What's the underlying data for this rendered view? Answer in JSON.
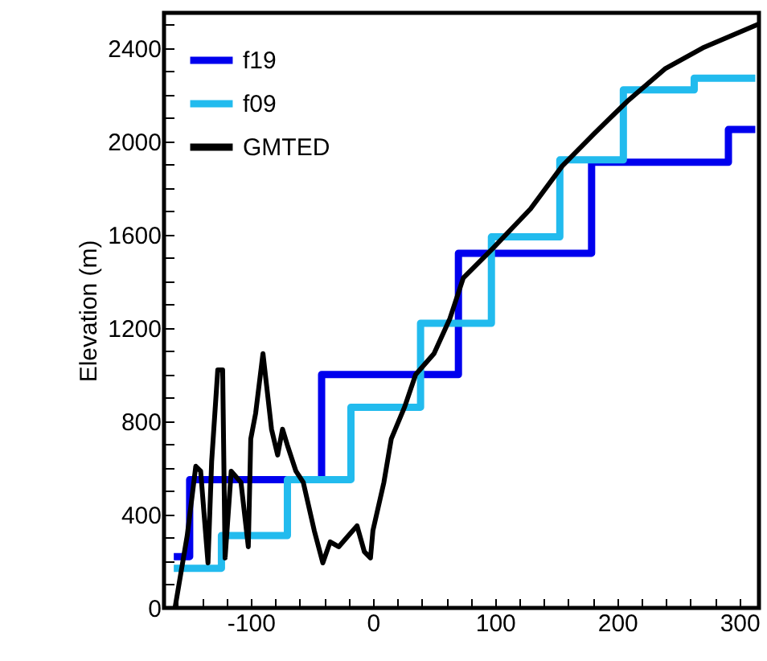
{
  "chart_data": {
    "type": "line",
    "ylabel": "Elevation (m)",
    "xlim": [
      -171,
      316
    ],
    "ylim": [
      0,
      2550
    ],
    "xticks": [
      {
        "value": -160,
        "label": null
      },
      {
        "value": -140,
        "label": null
      },
      {
        "value": -120,
        "label": null
      },
      -100,
      {
        "value": -80,
        "label": null
      },
      {
        "value": -60,
        "label": null
      },
      {
        "value": -40,
        "label": null
      },
      {
        "value": -20,
        "label": null
      },
      0,
      {
        "value": 20,
        "label": null
      },
      {
        "value": 40,
        "label": null
      },
      {
        "value": 60,
        "label": null
      },
      {
        "value": 80,
        "label": null
      },
      100,
      {
        "value": 120,
        "label": null
      },
      {
        "value": 140,
        "label": null
      },
      {
        "value": 160,
        "label": null
      },
      {
        "value": 180,
        "label": null
      },
      200,
      {
        "value": 220,
        "label": null
      },
      {
        "value": 240,
        "label": null
      },
      {
        "value": 260,
        "label": null
      },
      {
        "value": 280,
        "label": null
      },
      300
    ],
    "yticks": [
      0,
      {
        "value": 100,
        "label": null
      },
      {
        "value": 200,
        "label": null
      },
      {
        "value": 300,
        "label": null
      },
      400,
      {
        "value": 500,
        "label": null
      },
      {
        "value": 600,
        "label": null
      },
      {
        "value": 700,
        "label": null
      },
      800,
      {
        "value": 900,
        "label": null
      },
      {
        "value": 1000,
        "label": null
      },
      {
        "value": 1100,
        "label": null
      },
      1200,
      {
        "value": 1300,
        "label": null
      },
      {
        "value": 1400,
        "label": null
      },
      {
        "value": 1500,
        "label": null
      },
      1600,
      {
        "value": 1700,
        "label": null
      },
      {
        "value": 1800,
        "label": null
      },
      {
        "value": 1900,
        "label": null
      },
      2000,
      {
        "value": 2100,
        "label": null
      },
      {
        "value": 2200,
        "label": null
      },
      {
        "value": 2300,
        "label": null
      },
      2400,
      {
        "value": 2500,
        "label": null
      }
    ],
    "legend": "top left",
    "grid": false,
    "line_style": "solid",
    "marker": "none",
    "series": [
      {
        "name": "f19",
        "type": "step",
        "color": "#0000ee",
        "x": [
          -163,
          -150,
          -42,
          70,
          179,
          291,
          313
        ],
        "values": [
          220,
          550,
          1000,
          1520,
          1910,
          2050,
          2050
        ]
      },
      {
        "name": "f09",
        "type": "step",
        "color": "#22bbee",
        "x": [
          -163,
          -124,
          -70,
          -18,
          39,
          97,
          153,
          205,
          263,
          313
        ],
        "values": [
          170,
          310,
          550,
          860,
          1220,
          1590,
          1920,
          2220,
          2270,
          2270
        ]
      },
      {
        "name": "GMTED",
        "color": "#000000",
        "x": [
          -162,
          -152,
          -145,
          -141,
          -135,
          -132,
          -127,
          -123,
          -121,
          -116,
          -108,
          -102,
          -100,
          -96,
          -90,
          -87,
          -83,
          -78,
          -74,
          -70,
          -63,
          -57,
          -48,
          -41,
          -35,
          -28,
          -20,
          -13,
          -7,
          -2,
          0,
          9,
          15,
          26,
          35,
          50,
          63,
          74,
          98,
          129,
          155,
          181,
          208,
          239,
          270,
          316
        ],
        "values": [
          0,
          310,
          607,
          586,
          193,
          628,
          1020,
          1020,
          214,
          586,
          538,
          262,
          724,
          834,
          1090,
          952,
          766,
          655,
          766,
          697,
          586,
          538,
          331,
          193,
          283,
          262,
          310,
          352,
          241,
          214,
          331,
          538,
          724,
          862,
          1000,
          1090,
          1240,
          1414,
          1540,
          1710,
          1894,
          2032,
          2170,
          2310,
          2400,
          2503
        ]
      }
    ]
  }
}
